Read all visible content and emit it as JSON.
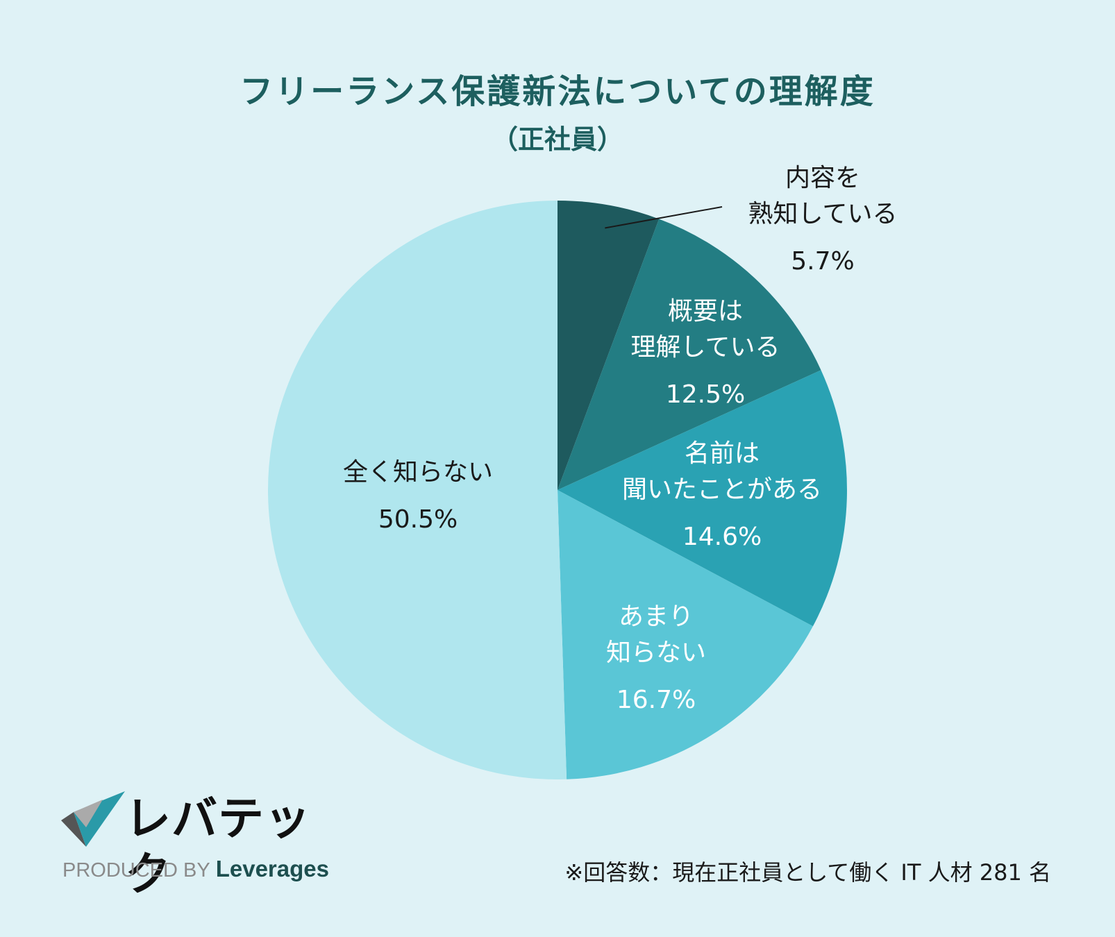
{
  "header": {
    "title": "フリーランス保護新法についての理解度",
    "subtitle": "（正社員）"
  },
  "chart_data": {
    "type": "pie",
    "title": "フリーランス保護新法についての理解度",
    "subtitle": "（正社員）",
    "start_angle_deg": 0,
    "direction": "clockwise",
    "slices": [
      {
        "label_lines": [
          "内容を",
          "熟知している"
        ],
        "value": 5.7,
        "pct_text": "5.7%",
        "color": "#1e5a5e",
        "label_color": "#1a1a1a",
        "label_position": "outside"
      },
      {
        "label_lines": [
          "概要は",
          "理解している"
        ],
        "value": 12.5,
        "pct_text": "12.5%",
        "color": "#237d83",
        "label_color": "#ffffff",
        "label_position": "inside"
      },
      {
        "label_lines": [
          "名前は",
          "聞いたことがある"
        ],
        "value": 14.6,
        "pct_text": "14.6%",
        "color": "#2aa2b3",
        "label_color": "#ffffff",
        "label_position": "inside"
      },
      {
        "label_lines": [
          "あまり",
          "知らない"
        ],
        "value": 16.7,
        "pct_text": "16.7%",
        "color": "#5ac6d6",
        "label_color": "#ffffff",
        "label_position": "inside"
      },
      {
        "label_lines": [
          "全く知らない"
        ],
        "value": 50.5,
        "pct_text": "50.5%",
        "color": "#b0e6ee",
        "label_color": "#1a1a1a",
        "label_position": "inside"
      }
    ]
  },
  "logo": {
    "text": "レバテック",
    "produced_by": "PRODUCED BY",
    "brand": "Leverages",
    "colors": [
      "#2a9aa8",
      "#555555",
      "#aaaaaa"
    ]
  },
  "footnote": "※回答数：現在正社員として働く IT 人材 281 名"
}
